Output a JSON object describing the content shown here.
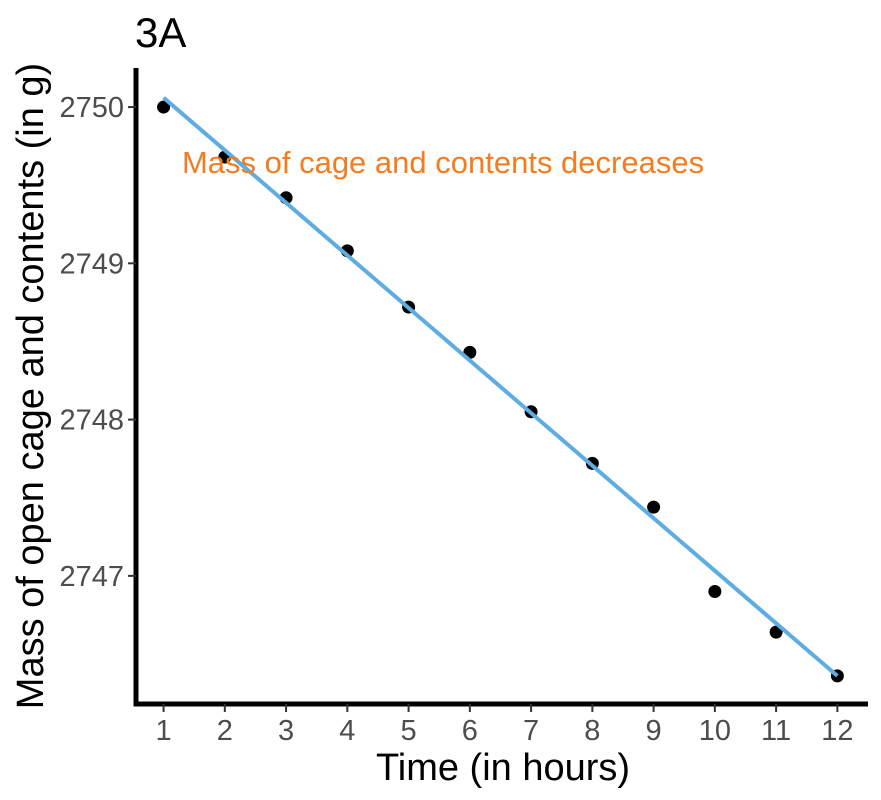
{
  "chart_data": {
    "type": "scatter",
    "title": "3A",
    "xlabel": "Time (in hours)",
    "ylabel": "Mass of open cage and contents (in g)",
    "x": [
      1,
      2,
      3,
      4,
      5,
      6,
      7,
      8,
      9,
      10,
      11,
      12
    ],
    "y": [
      2750.0,
      2749.68,
      2749.42,
      2749.08,
      2748.72,
      2748.43,
      2748.05,
      2747.72,
      2747.44,
      2746.9,
      2746.64,
      2746.36
    ],
    "fit_line": {
      "x": [
        1,
        12
      ],
      "y": [
        2750.06,
        2746.36
      ]
    },
    "xlim": [
      0.55,
      12.5
    ],
    "ylim": [
      2746.18,
      2750.25
    ],
    "x_ticks": [
      "1",
      "2",
      "3",
      "4",
      "5",
      "6",
      "7",
      "8",
      "9",
      "10",
      "11",
      "12"
    ],
    "y_ticks": [
      "2747",
      "2748",
      "2749",
      "2750"
    ],
    "annotation": {
      "text": "Mass of cage and contents decreases",
      "x": 1.3,
      "y": 2749.65
    },
    "grid": false,
    "colors": {
      "points": "#000000",
      "fit_line": "#5DADE2",
      "annotation": "#F47C20"
    }
  }
}
